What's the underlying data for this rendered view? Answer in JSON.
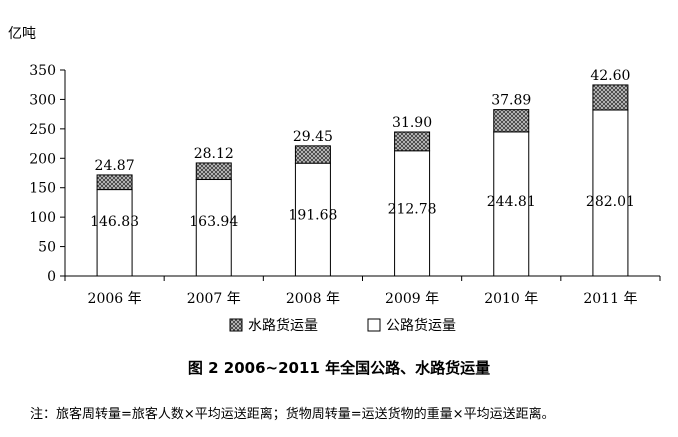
{
  "chart_data": {
    "type": "bar",
    "stacked": true,
    "categories": [
      "2006 年",
      "2007 年",
      "2008 年",
      "2009 年",
      "2010 年",
      "2011 年"
    ],
    "series": [
      {
        "name": "公路货运量",
        "values": [
          146.83,
          163.94,
          191.68,
          212.78,
          244.81,
          282.01
        ],
        "labels": [
          "146.83",
          "163.94",
          "191.68",
          "212.78",
          "244.81",
          "282.01"
        ],
        "fill": "white"
      },
      {
        "name": "水路货运量",
        "values": [
          24.87,
          28.12,
          29.45,
          31.9,
          37.89,
          42.6
        ],
        "labels": [
          "24.87",
          "28.12",
          "29.45",
          "31.90",
          "37.89",
          "42.60"
        ],
        "fill": "crosshatch"
      }
    ],
    "title": "图 2 2006~2011 年全国公路、水路货运量",
    "ylabel": "亿吨",
    "xlabel": "",
    "ylim": [
      0,
      350
    ],
    "yticks": [
      "0",
      "50",
      "100",
      "150",
      "200",
      "250",
      "300",
      "350"
    ],
    "grid": false,
    "legend_position": "bottom",
    "note": "注：旅客周转量=旅客人数×平均运送距离；货物周转量=运送货物的重量×平均运送距离。"
  }
}
